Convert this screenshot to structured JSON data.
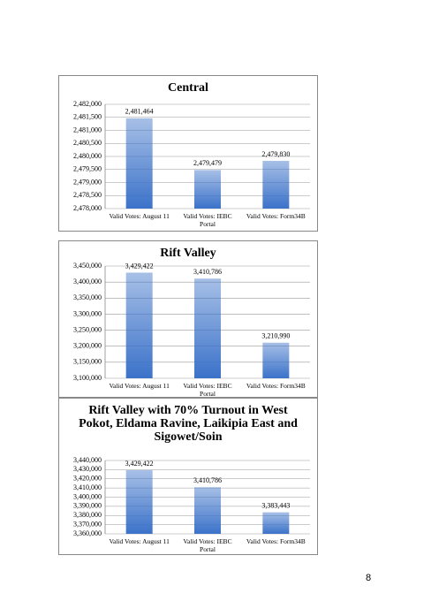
{
  "chart_data": [
    {
      "type": "bar",
      "title": "Central",
      "categories": [
        "Valid Votes: August 11",
        "Valid Votes: IEBC Portal",
        "Valid Votes: Form34B"
      ],
      "values": [
        2481464,
        2479479,
        2479830
      ],
      "value_labels": [
        "2,481,464",
        "2,479,479",
        "2,479,830"
      ],
      "color": "#3b72c9",
      "ylim": [
        2478000,
        2482000
      ],
      "yticks": [
        {
          "value": 2478000,
          "label": "2,478,000"
        },
        {
          "value": 2478500,
          "label": "2,478,500"
        },
        {
          "value": 2479000,
          "label": "2,479,000"
        },
        {
          "value": 2479500,
          "label": "2,479,500"
        },
        {
          "value": 2480000,
          "label": "2,480,000"
        },
        {
          "value": 2480500,
          "label": "2,480,500"
        },
        {
          "value": 2481000,
          "label": "2,481,000"
        },
        {
          "value": 2481500,
          "label": "2,481,500"
        },
        {
          "value": 2482000,
          "label": "2,482,000"
        }
      ],
      "grid": true
    },
    {
      "type": "bar",
      "title": "Rift Valley",
      "categories": [
        "Valid Votes: August 11",
        "Valid Votes: IEBC Portal",
        "Valid Votes: Form34B"
      ],
      "values": [
        3429422,
        3410786,
        3210990
      ],
      "value_labels": [
        "3,429,422",
        "3,410,786",
        "3,210,990"
      ],
      "color": "#3b72c9",
      "ylim": [
        3100000,
        3450000
      ],
      "yticks": [
        {
          "value": 3100000,
          "label": "3,100,000"
        },
        {
          "value": 3150000,
          "label": "3,150,000"
        },
        {
          "value": 3200000,
          "label": "3,200,000"
        },
        {
          "value": 3250000,
          "label": "3,250,000"
        },
        {
          "value": 3300000,
          "label": "3,300,000"
        },
        {
          "value": 3350000,
          "label": "3,350,000"
        },
        {
          "value": 3400000,
          "label": "3,400,000"
        },
        {
          "value": 3450000,
          "label": "3,450,000"
        }
      ],
      "grid": true
    },
    {
      "type": "bar",
      "title": "Rift Valley with 70% Turnout in West Pokot, Eldama Ravine, Laikipia East and Sigowet/Soin",
      "categories": [
        "Valid Votes: August 11",
        "Valid Votes: IEBC Portal",
        "Valid Votes: Form34B"
      ],
      "values": [
        3429422,
        3410786,
        3383443
      ],
      "value_labels": [
        "3,429,422",
        "3,410,786",
        "3,383,443"
      ],
      "color": "#3b72c9",
      "ylim": [
        3360000,
        3440000
      ],
      "yticks": [
        {
          "value": 3360000,
          "label": "3,360,000"
        },
        {
          "value": 3370000,
          "label": "3,370,000"
        },
        {
          "value": 3380000,
          "label": "3,380,000"
        },
        {
          "value": 3390000,
          "label": "3,390,000"
        },
        {
          "value": 3400000,
          "label": "3,400,000"
        },
        {
          "value": 3410000,
          "label": "3,410,000"
        },
        {
          "value": 3420000,
          "label": "3,420,000"
        },
        {
          "value": 3430000,
          "label": "3,430,000"
        },
        {
          "value": 3440000,
          "label": "3,440,000"
        }
      ],
      "grid": true
    }
  ],
  "page_number": "8"
}
